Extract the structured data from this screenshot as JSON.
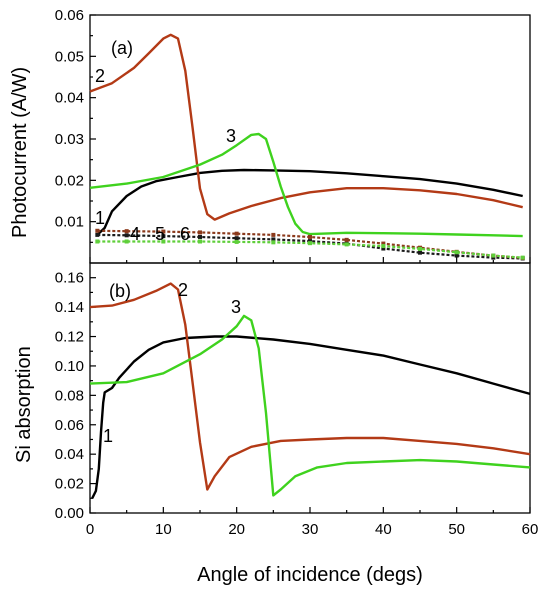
{
  "chart_data": {
    "type": "line",
    "xlabel": "Angle of incidence (degs)",
    "xlim": [
      0,
      60
    ],
    "x_ticks": [
      "0",
      "10",
      "20",
      "30",
      "40",
      "50",
      "60"
    ],
    "colors": {
      "curve_1": "#000000",
      "curve_2": "#b33a16",
      "curve_3": "#3fd21e",
      "curve_4": "#1a1a1a",
      "curve_5": "#8c3a1c",
      "curve_6": "#5fcf3a"
    },
    "panels": [
      {
        "label": "(a)",
        "ylabel": "Photocurrent (A/W)",
        "ylim": [
          0.0,
          0.06
        ],
        "y_ticks": [
          "0.01",
          "0.02",
          "0.03",
          "0.04",
          "0.05",
          "0.06"
        ],
        "series": [
          {
            "name": "1",
            "points": [
              [
                1,
                0.0068
              ],
              [
                2,
                0.0085
              ],
              [
                3,
                0.0125
              ],
              [
                5,
                0.0162
              ],
              [
                7,
                0.0185
              ],
              [
                9,
                0.0198
              ],
              [
                12,
                0.0208
              ],
              [
                15,
                0.0218
              ],
              [
                18,
                0.0223
              ],
              [
                21,
                0.0225
              ],
              [
                25,
                0.0224
              ],
              [
                30,
                0.0222
              ],
              [
                35,
                0.0217
              ],
              [
                40,
                0.021
              ],
              [
                45,
                0.0203
              ],
              [
                50,
                0.0192
              ],
              [
                55,
                0.0177
              ],
              [
                59,
                0.0162
              ]
            ]
          },
          {
            "name": "2",
            "points": [
              [
                0,
                0.0415
              ],
              [
                3,
                0.0435
              ],
              [
                6,
                0.0472
              ],
              [
                8,
                0.0507
              ],
              [
                10,
                0.0543
              ],
              [
                11,
                0.0552
              ],
              [
                12,
                0.0543
              ],
              [
                13,
                0.0465
              ],
              [
                14,
                0.0325
              ],
              [
                15,
                0.018
              ],
              [
                16,
                0.0118
              ],
              [
                17,
                0.0105
              ],
              [
                19,
                0.012
              ],
              [
                22,
                0.0138
              ],
              [
                26,
                0.0157
              ],
              [
                30,
                0.0171
              ],
              [
                35,
                0.0181
              ],
              [
                40,
                0.0181
              ],
              [
                45,
                0.0176
              ],
              [
                50,
                0.0167
              ],
              [
                55,
                0.0152
              ],
              [
                59,
                0.0135
              ]
            ]
          },
          {
            "name": "3",
            "points": [
              [
                0,
                0.0182
              ],
              [
                5,
                0.0192
              ],
              [
                10,
                0.0208
              ],
              [
                15,
                0.0238
              ],
              [
                18,
                0.0262
              ],
              [
                20,
                0.0285
              ],
              [
                22,
                0.031
              ],
              [
                23,
                0.0312
              ],
              [
                24,
                0.03
              ],
              [
                25,
                0.0245
              ],
              [
                26,
                0.0185
              ],
              [
                27,
                0.0135
              ],
              [
                28,
                0.0095
              ],
              [
                29,
                0.0075
              ],
              [
                30,
                0.007
              ],
              [
                35,
                0.0073
              ],
              [
                40,
                0.0072
              ],
              [
                45,
                0.0071
              ],
              [
                50,
                0.0069
              ],
              [
                55,
                0.0067
              ],
              [
                59,
                0.0065
              ]
            ]
          },
          {
            "name": "4",
            "points": [
              [
                1,
                0.0068
              ],
              [
                5,
                0.0067
              ],
              [
                10,
                0.0065
              ],
              [
                15,
                0.0063
              ],
              [
                20,
                0.006
              ],
              [
                25,
                0.0057
              ],
              [
                30,
                0.0053
              ],
              [
                35,
                0.0047
              ],
              [
                40,
                0.0035
              ],
              [
                45,
                0.0025
              ],
              [
                50,
                0.0018
              ],
              [
                55,
                0.0013
              ],
              [
                59,
                0.0011
              ]
            ]
          },
          {
            "name": "5",
            "points": [
              [
                1,
                0.0078
              ],
              [
                5,
                0.0077
              ],
              [
                10,
                0.0076
              ],
              [
                15,
                0.0074
              ],
              [
                20,
                0.0071
              ],
              [
                25,
                0.0068
              ],
              [
                30,
                0.0063
              ],
              [
                35,
                0.0056
              ],
              [
                40,
                0.0047
              ],
              [
                45,
                0.0037
              ],
              [
                50,
                0.0027
              ],
              [
                55,
                0.0018
              ],
              [
                59,
                0.0012
              ]
            ]
          },
          {
            "name": "6",
            "points": [
              [
                1,
                0.0052
              ],
              [
                5,
                0.0052
              ],
              [
                10,
                0.0052
              ],
              [
                15,
                0.0052
              ],
              [
                20,
                0.0051
              ],
              [
                25,
                0.005
              ],
              [
                30,
                0.0048
              ],
              [
                35,
                0.0045
              ],
              [
                40,
                0.0041
              ],
              [
                45,
                0.0034
              ],
              [
                50,
                0.0026
              ],
              [
                55,
                0.0018
              ],
              [
                59,
                0.0013
              ]
            ]
          }
        ],
        "annotations": [
          "1",
          "2",
          "3",
          "4",
          "5",
          "6"
        ]
      },
      {
        "label": "(b)",
        "ylabel": "Si absorption",
        "ylim": [
          0.0,
          0.17
        ],
        "y_ticks": [
          "0.00",
          "0.02",
          "0.04",
          "0.06",
          "0.08",
          "0.10",
          "0.12",
          "0.14",
          "0.16"
        ],
        "series": [
          {
            "name": "1",
            "points": [
              [
                0.3,
                0.01
              ],
              [
                0.8,
                0.015
              ],
              [
                1.2,
                0.03
              ],
              [
                1.5,
                0.055
              ],
              [
                1.8,
                0.075
              ],
              [
                2,
                0.082
              ],
              [
                3,
                0.085
              ],
              [
                4,
                0.092
              ],
              [
                6,
                0.103
              ],
              [
                8,
                0.111
              ],
              [
                10,
                0.116
              ],
              [
                13,
                0.119
              ],
              [
                17,
                0.12
              ],
              [
                20,
                0.12
              ],
              [
                25,
                0.118
              ],
              [
                30,
                0.115
              ],
              [
                35,
                0.111
              ],
              [
                40,
                0.107
              ],
              [
                45,
                0.101
              ],
              [
                50,
                0.095
              ],
              [
                55,
                0.088
              ],
              [
                60,
                0.081
              ]
            ]
          },
          {
            "name": "2",
            "points": [
              [
                0,
                0.14
              ],
              [
                3,
                0.141
              ],
              [
                6,
                0.145
              ],
              [
                9,
                0.151
              ],
              [
                11,
                0.156
              ],
              [
                12,
                0.152
              ],
              [
                13,
                0.128
              ],
              [
                14,
                0.088
              ],
              [
                15,
                0.048
              ],
              [
                16,
                0.016
              ],
              [
                17,
                0.025
              ],
              [
                19,
                0.038
              ],
              [
                22,
                0.045
              ],
              [
                26,
                0.049
              ],
              [
                30,
                0.05
              ],
              [
                35,
                0.051
              ],
              [
                40,
                0.051
              ],
              [
                45,
                0.049
              ],
              [
                50,
                0.047
              ],
              [
                55,
                0.044
              ],
              [
                60,
                0.04
              ]
            ]
          },
          {
            "name": "3",
            "points": [
              [
                0,
                0.088
              ],
              [
                5,
                0.089
              ],
              [
                10,
                0.095
              ],
              [
                15,
                0.108
              ],
              [
                18,
                0.118
              ],
              [
                20,
                0.127
              ],
              [
                21,
                0.134
              ],
              [
                22,
                0.131
              ],
              [
                23,
                0.112
              ],
              [
                24,
                0.068
              ],
              [
                25,
                0.012
              ],
              [
                26,
                0.016
              ],
              [
                28,
                0.025
              ],
              [
                31,
                0.031
              ],
              [
                35,
                0.034
              ],
              [
                40,
                0.035
              ],
              [
                45,
                0.036
              ],
              [
                50,
                0.035
              ],
              [
                55,
                0.033
              ],
              [
                60,
                0.031
              ]
            ]
          }
        ],
        "annotations": [
          "1",
          "2",
          "3"
        ]
      }
    ]
  }
}
